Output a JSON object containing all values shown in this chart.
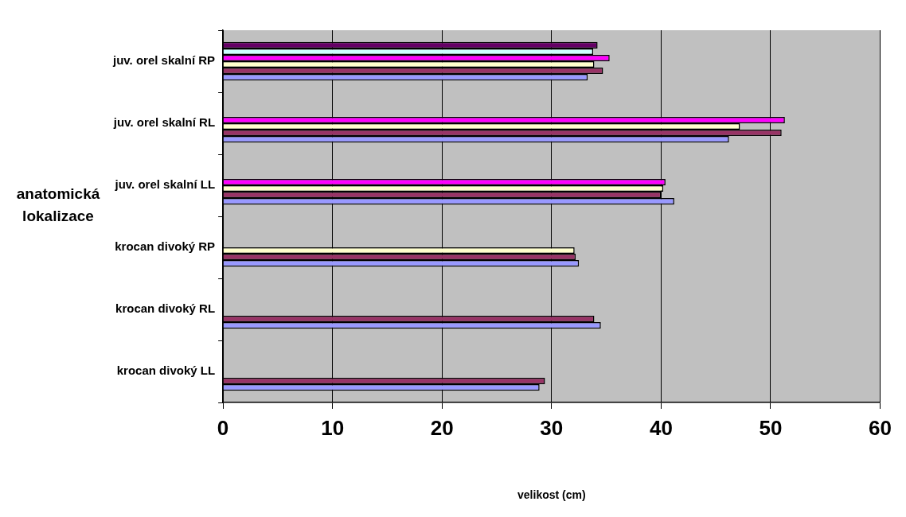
{
  "chart_data": {
    "type": "bar",
    "orientation": "horizontal",
    "categories": [
      "juv. orel skalní RP",
      "juv. orel skalní RL",
      "juv. orel skalní LL",
      "krocan divoký RP",
      "krocan divoký RL",
      "krocan divoký LL"
    ],
    "series": [
      {
        "color": "#660066",
        "values": [
          34.2,
          null,
          null,
          null,
          null,
          null
        ]
      },
      {
        "color": "#ccffff",
        "values": [
          33.8,
          null,
          null,
          null,
          null,
          null
        ]
      },
      {
        "color": "#ff00ff",
        "values": [
          35.3,
          51.3,
          40.4,
          null,
          null,
          null
        ]
      },
      {
        "color": "#ffffcc",
        "values": [
          33.9,
          47.2,
          40.2,
          32.1,
          null,
          null
        ]
      },
      {
        "color": "#993366",
        "values": [
          34.7,
          51.0,
          40.0,
          32.2,
          33.9,
          29.4
        ]
      },
      {
        "color": "#9999ff",
        "values": [
          33.3,
          46.2,
          41.2,
          32.5,
          34.5,
          28.9
        ]
      }
    ],
    "xlim": [
      0,
      60
    ],
    "xticks": [
      0,
      10,
      20,
      30,
      40,
      50,
      60
    ],
    "xlabel": "velikost (cm)",
    "ylabel": "anatomická lokalizace",
    "grid": "x",
    "legend": false
  }
}
